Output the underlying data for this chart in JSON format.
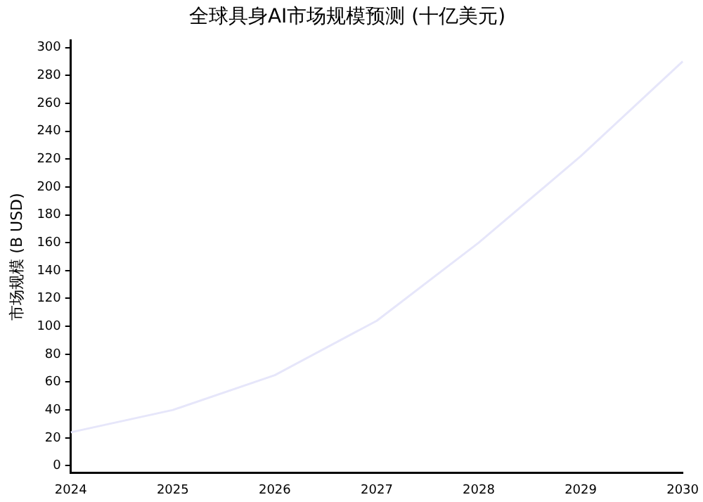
{
  "chart_data": {
    "type": "line",
    "title": "全球具身AI市场规模预测 (十亿美元)",
    "ylabel": "市场规模 (B USD)",
    "categories": [
      "2024",
      "2025",
      "2026",
      "2027",
      "2028",
      "2029",
      "2030"
    ],
    "series": [
      {
        "color": "#e6e6fa",
        "values": [
          24,
          40,
          65,
          104,
          160,
          222,
          290
        ]
      }
    ],
    "ylim": [
      -5,
      305
    ],
    "yticks": [
      0,
      20,
      40,
      60,
      80,
      100,
      120,
      140,
      160,
      180,
      200,
      220,
      240,
      260,
      280,
      300
    ],
    "grid": false,
    "legend": false,
    "marker": "none",
    "line_style": "solid"
  }
}
